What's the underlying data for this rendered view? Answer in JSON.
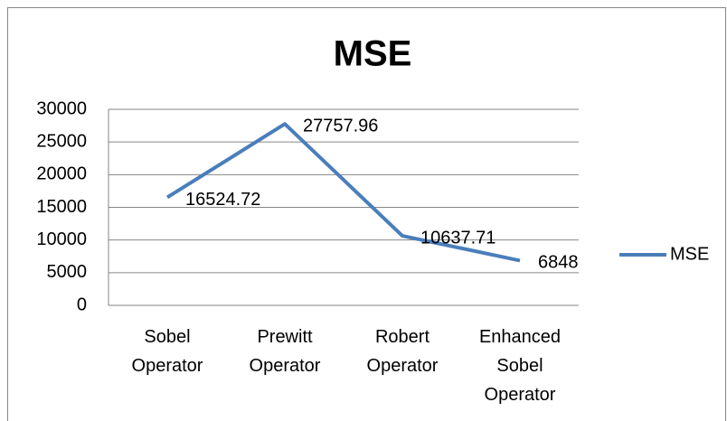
{
  "chart_data": {
    "type": "line",
    "title": "MSE",
    "categories": [
      "Sobel Operator",
      "Prewitt Operator",
      "Robert Operator",
      "Enhanced Sobel Operator"
    ],
    "series": [
      {
        "name": "MSE",
        "color": "#4a7ebb",
        "values": [
          16524.72,
          27757.96,
          10637.71,
          6848
        ]
      }
    ],
    "ylim": [
      0,
      30000
    ],
    "yticks": [
      0,
      5000,
      10000,
      15000,
      20000,
      25000,
      30000
    ],
    "grid": true,
    "legend": "right"
  }
}
